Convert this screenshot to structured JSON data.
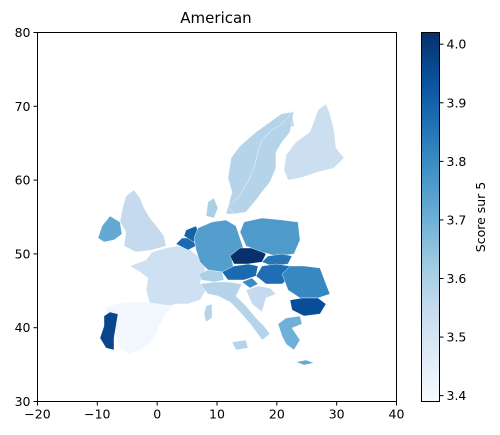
{
  "chart_data": {
    "type": "choropleth",
    "title": "American",
    "xlim": [
      -20,
      40
    ],
    "ylim": [
      30,
      80
    ],
    "xticks": [
      -20,
      -10,
      0,
      10,
      20,
      30,
      40
    ],
    "yticks": [
      30,
      40,
      50,
      60,
      70,
      80
    ],
    "colorbar": {
      "label": "Score sur 5",
      "range": [
        3.39,
        4.02
      ],
      "ticks": [
        3.4,
        3.5,
        3.6,
        3.7,
        3.8,
        3.9,
        4.0
      ],
      "colormap": "Blues"
    },
    "regions": [
      {
        "name": "Norway",
        "value": 3.58
      },
      {
        "name": "Sweden",
        "value": 3.58
      },
      {
        "name": "Finland",
        "value": 3.53
      },
      {
        "name": "Ireland",
        "value": 3.72
      },
      {
        "name": "United Kingdom",
        "value": 3.55
      },
      {
        "name": "France",
        "value": 3.52
      },
      {
        "name": "Spain",
        "value": 3.41
      },
      {
        "name": "Portugal",
        "value": 3.97
      },
      {
        "name": "Belgium",
        "value": 3.88
      },
      {
        "name": "Netherlands",
        "value": 3.9
      },
      {
        "name": "Germany",
        "value": 3.75
      },
      {
        "name": "Denmark",
        "value": 3.6
      },
      {
        "name": "Switzerland",
        "value": 3.6
      },
      {
        "name": "Austria",
        "value": 3.88
      },
      {
        "name": "Czechia",
        "value": 4.02
      },
      {
        "name": "Poland",
        "value": 3.76
      },
      {
        "name": "Slovakia",
        "value": 3.85
      },
      {
        "name": "Hungary",
        "value": 3.87
      },
      {
        "name": "Slovenia",
        "value": 3.8
      },
      {
        "name": "Croatia",
        "value": 3.55
      },
      {
        "name": "Italy",
        "value": 3.58
      },
      {
        "name": "Romania",
        "value": 3.81
      },
      {
        "name": "Bulgaria",
        "value": 3.95
      },
      {
        "name": "Greece",
        "value": 3.7
      },
      {
        "name": "Cyprus",
        "value": 3.72
      }
    ]
  }
}
